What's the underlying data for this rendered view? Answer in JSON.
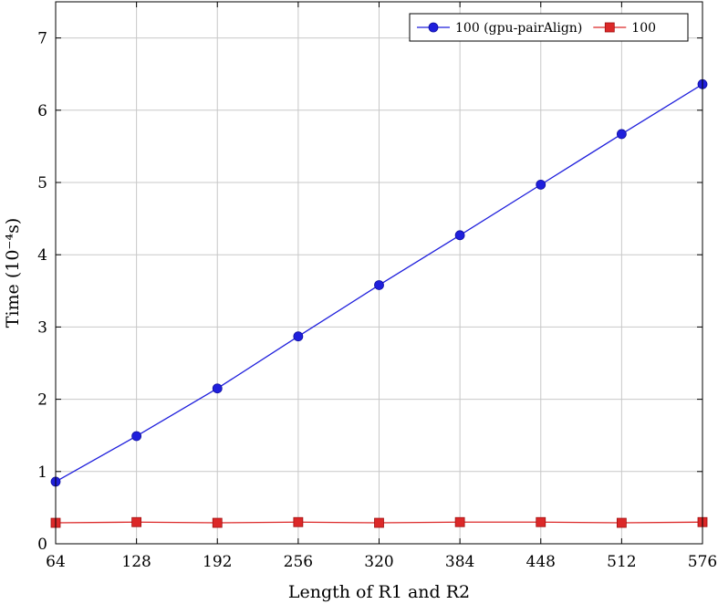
{
  "chart_data": {
    "type": "line",
    "xlabel": "Length of R1 and R2",
    "ylabel": "Time (10⁻⁴s)",
    "x": [
      64,
      128,
      192,
      256,
      320,
      384,
      448,
      512,
      576
    ],
    "xlim": [
      64,
      576
    ],
    "ylim": [
      0,
      7.5
    ],
    "xticks": [
      64,
      128,
      192,
      256,
      320,
      384,
      448,
      512,
      576
    ],
    "yticks": [
      0,
      1,
      2,
      3,
      4,
      5,
      6,
      7
    ],
    "grid": true,
    "legend_position": "top-right",
    "series": [
      {
        "name": "100 (gpu-pairAlign)",
        "color": "#1f1fdc",
        "marker": "circle",
        "values": [
          0.86,
          1.49,
          2.15,
          2.87,
          3.58,
          4.27,
          4.97,
          5.67,
          6.36
        ]
      },
      {
        "name": "100",
        "color": "#dc2828",
        "marker": "square",
        "values": [
          0.29,
          0.3,
          0.29,
          0.3,
          0.29,
          0.3,
          0.3,
          0.29,
          0.3
        ]
      }
    ]
  }
}
